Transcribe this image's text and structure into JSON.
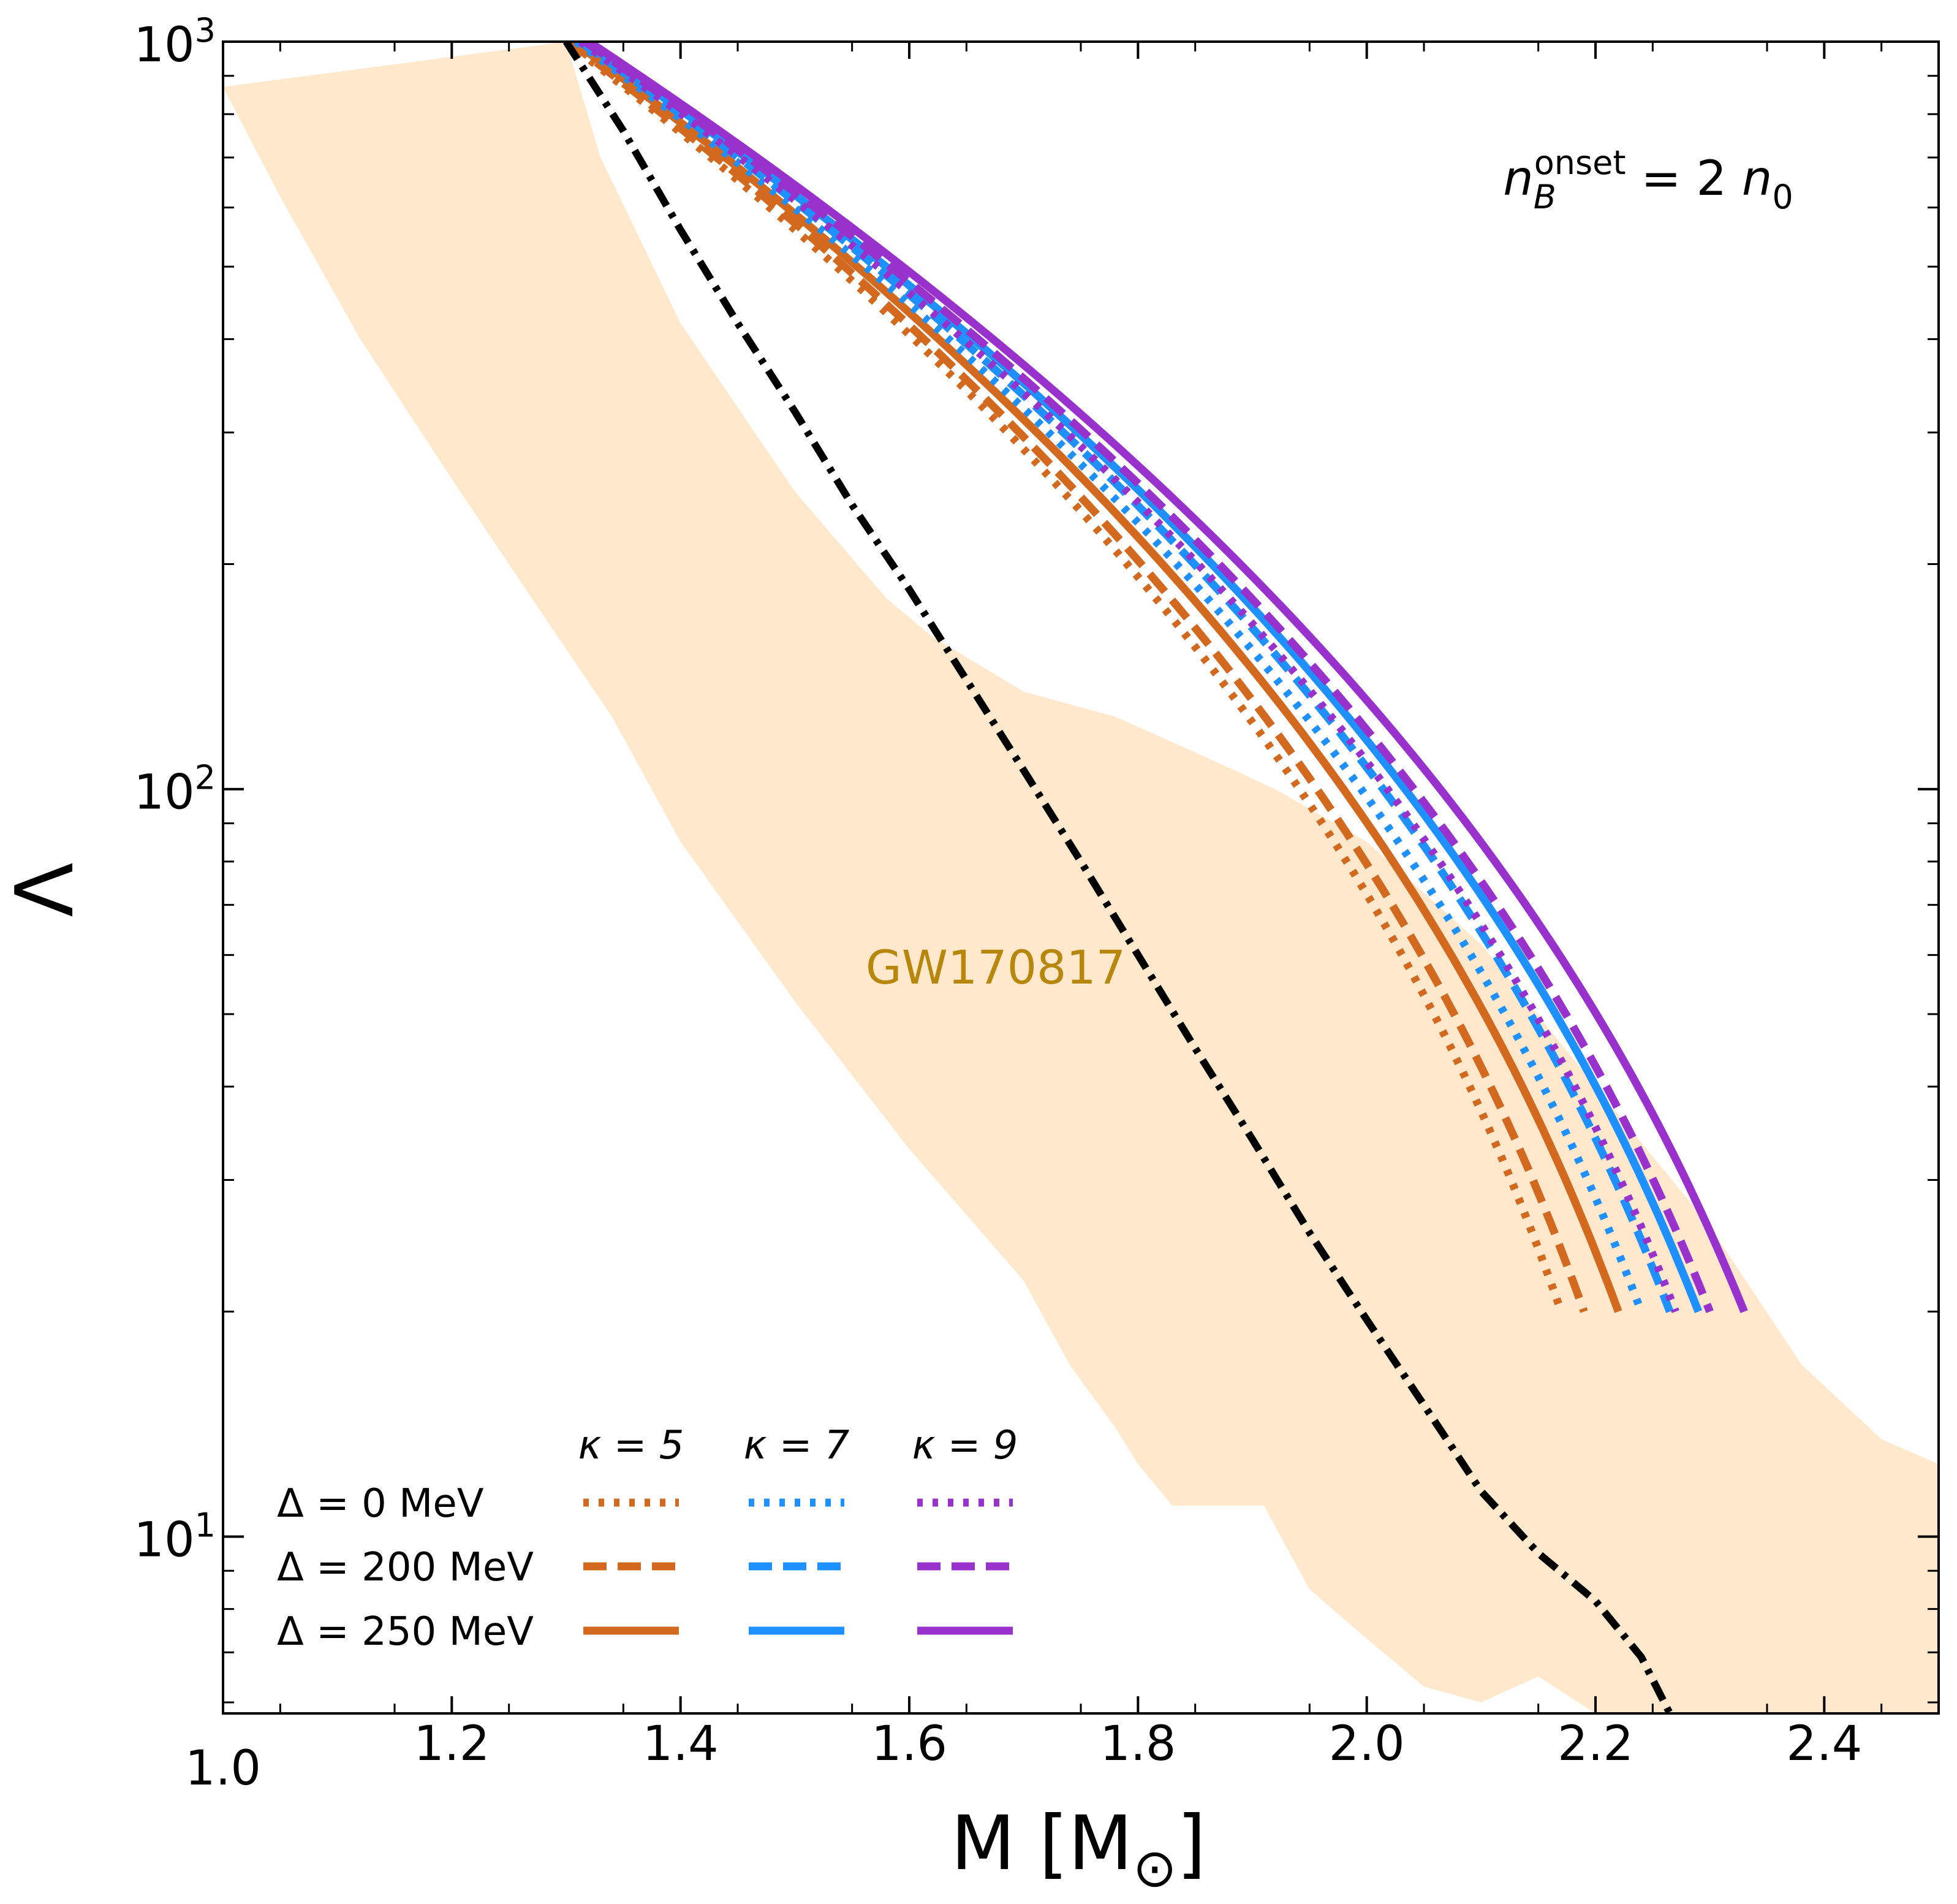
{
  "chart_data": {
    "type": "line",
    "x_axis": {
      "label_main": "M [M",
      "label_sub": "⊙",
      "label_close": "]",
      "range": [
        1.0,
        2.5
      ],
      "ticks": [
        1.0,
        1.2,
        1.4,
        1.6,
        1.8,
        2.0,
        2.2,
        2.4
      ],
      "tick_labels": [
        "1.0",
        "1.2",
        "1.4",
        "1.6",
        "1.8",
        "2.0",
        "2.2",
        "2.4"
      ]
    },
    "y_axis": {
      "label": "Λ",
      "scale": "log",
      "range": [
        5.8,
        1000
      ],
      "major_ticks": [
        10,
        100,
        1000
      ],
      "tick_base": "10",
      "tick_exponents": [
        "1",
        "2",
        "3"
      ]
    },
    "annotations": {
      "onset_n": "n",
      "onset_sub": "B",
      "onset_sup": "onset",
      "onset_rhs": " = 2 ",
      "onset_n0": "n",
      "onset_n0_sub": "0",
      "band_label": "GW170817"
    },
    "band": {
      "label": "GW170817",
      "color": "#ffe8cc",
      "lower": [
        [
          1.3,
          1000
        ],
        [
          1.33,
          700
        ],
        [
          1.4,
          420
        ],
        [
          1.5,
          250
        ],
        [
          1.58,
          180
        ],
        [
          1.62,
          160
        ],
        [
          1.7,
          135
        ],
        [
          1.78,
          125
        ],
        [
          1.85,
          112
        ],
        [
          1.92,
          100
        ],
        [
          2.0,
          85
        ],
        [
          2.1,
          62
        ],
        [
          2.2,
          40
        ],
        [
          2.3,
          26
        ],
        [
          2.38,
          17
        ],
        [
          2.45,
          13.5
        ],
        [
          2.5,
          12.5
        ]
      ],
      "upper": [
        [
          1.0,
          870
        ],
        [
          1.05,
          620
        ],
        [
          1.12,
          400
        ],
        [
          1.2,
          260
        ],
        [
          1.27,
          180
        ],
        [
          1.34,
          125
        ],
        [
          1.4,
          85
        ],
        [
          1.5,
          52
        ],
        [
          1.6,
          33
        ],
        [
          1.7,
          22
        ],
        [
          1.74,
          17
        ],
        [
          1.78,
          14
        ],
        [
          1.8,
          12.5
        ],
        [
          1.83,
          11
        ],
        [
          1.87,
          11
        ],
        [
          1.91,
          11
        ],
        [
          1.95,
          8.5
        ],
        [
          2.0,
          7.3
        ],
        [
          2.05,
          6.3
        ],
        [
          2.1,
          6.0
        ],
        [
          2.15,
          6.5
        ],
        [
          2.2,
          5.8
        ],
        [
          2.5,
          5.8
        ]
      ]
    },
    "legend": {
      "headers": [
        "κ = 5",
        "κ = 7",
        "κ = 9"
      ],
      "rows": [
        "Δ = 0 MeV",
        "Δ = 200 MeV",
        "Δ = 250 MeV"
      ]
    },
    "colors": {
      "kappa5": "#d2691e",
      "kappa7": "#1e90ff",
      "kappa9": "#9932cc",
      "baseline": "#000000"
    },
    "series": [
      {
        "kappa": 5,
        "delta": 0,
        "style": "dotted",
        "color": "#d2691e",
        "end": [
          2.17,
          20
        ]
      },
      {
        "kappa": 5,
        "delta": 200,
        "style": "dashed",
        "color": "#d2691e",
        "end": [
          2.19,
          20
        ]
      },
      {
        "kappa": 5,
        "delta": 250,
        "style": "solid",
        "color": "#d2691e",
        "end": [
          2.22,
          20
        ]
      },
      {
        "kappa": 7,
        "delta": 0,
        "style": "dotted",
        "color": "#1e90ff",
        "end": [
          2.24,
          20
        ]
      },
      {
        "kappa": 7,
        "delta": 200,
        "style": "dashed",
        "color": "#1e90ff",
        "end": [
          2.265,
          20
        ]
      },
      {
        "kappa": 7,
        "delta": 250,
        "style": "solid",
        "color": "#1e90ff",
        "end": [
          2.29,
          20
        ]
      },
      {
        "kappa": 9,
        "delta": 0,
        "style": "dotted",
        "color": "#9932cc",
        "end": [
          2.27,
          20
        ]
      },
      {
        "kappa": 9,
        "delta": 200,
        "style": "dashed",
        "color": "#9932cc",
        "end": [
          2.3,
          20
        ]
      },
      {
        "kappa": 9,
        "delta": 250,
        "style": "solid",
        "color": "#9932cc",
        "end": [
          2.33,
          20
        ]
      },
      {
        "style": "dashdot",
        "color": "#000000",
        "points": [
          [
            1.3,
            1000
          ],
          [
            1.35,
            760
          ],
          [
            1.4,
            560
          ],
          [
            1.45,
            420
          ],
          [
            1.5,
            320
          ],
          [
            1.55,
            240
          ],
          [
            1.6,
            185
          ],
          [
            1.65,
            140
          ],
          [
            1.7,
            106
          ],
          [
            1.75,
            80
          ],
          [
            1.8,
            60
          ],
          [
            1.85,
            45
          ],
          [
            1.9,
            34
          ],
          [
            1.95,
            25.5
          ],
          [
            2.0,
            19.5
          ],
          [
            2.05,
            15
          ],
          [
            2.1,
            11.5
          ],
          [
            2.15,
            9.5
          ],
          [
            2.2,
            8.2
          ],
          [
            2.24,
            6.9
          ],
          [
            2.265,
            5.8
          ]
        ]
      }
    ]
  }
}
